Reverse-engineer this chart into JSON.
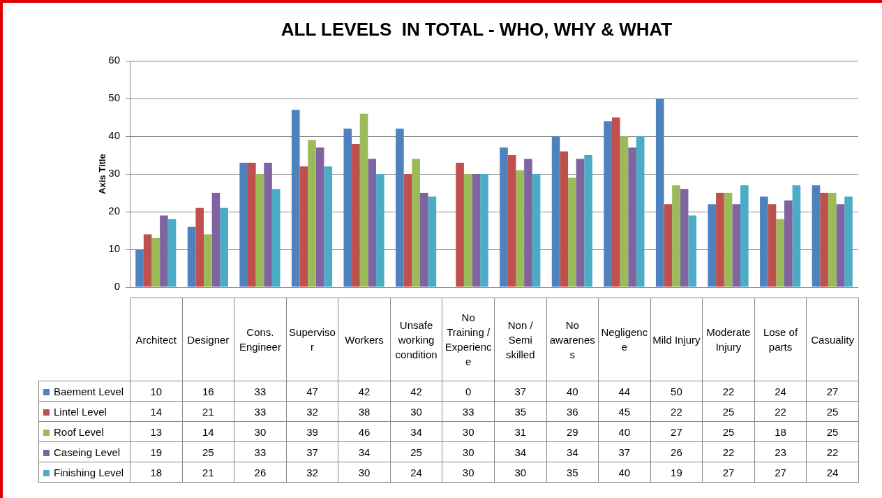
{
  "chart_data": {
    "type": "bar",
    "title": "ALL LEVELS  IN TOTAL - WHO, WHY & WHAT",
    "ylabel": "Axis Title",
    "categories": [
      "Architect",
      "Designer",
      "Cons. Engineer",
      "Supervisor",
      "Workers",
      "Unsafe working condition",
      "No Training / Experience",
      "Non / Semi skilled",
      "No awareness",
      "Negligence",
      "Mild Injury",
      "Moderate Injury",
      "Lose of parts",
      "Casuality"
    ],
    "series": [
      {
        "name": "Baement Level",
        "color": "#4f81bd",
        "values": [
          10,
          16,
          33,
          47,
          42,
          42,
          0,
          37,
          40,
          44,
          50,
          22,
          24,
          27
        ]
      },
      {
        "name": "Lintel Level",
        "color": "#c0504d",
        "values": [
          14,
          21,
          33,
          32,
          38,
          30,
          33,
          35,
          36,
          45,
          22,
          25,
          22,
          25
        ]
      },
      {
        "name": "Roof Level",
        "color": "#9bbb59",
        "values": [
          13,
          14,
          30,
          39,
          46,
          34,
          30,
          31,
          29,
          40,
          27,
          25,
          18,
          25
        ]
      },
      {
        "name": "Caseing Level",
        "color": "#8064a2",
        "values": [
          19,
          25,
          33,
          37,
          34,
          25,
          30,
          34,
          34,
          37,
          26,
          22,
          23,
          22
        ]
      },
      {
        "name": "Finishing Level",
        "color": "#4bacc6",
        "values": [
          18,
          21,
          26,
          32,
          30,
          24,
          30,
          30,
          35,
          40,
          19,
          27,
          27,
          24
        ]
      }
    ],
    "ylim": [
      0,
      60
    ],
    "yticks": [
      0,
      10,
      20,
      30,
      40,
      50,
      60
    ],
    "grid": "y",
    "legend": "bottom",
    "data_labels": true
  }
}
